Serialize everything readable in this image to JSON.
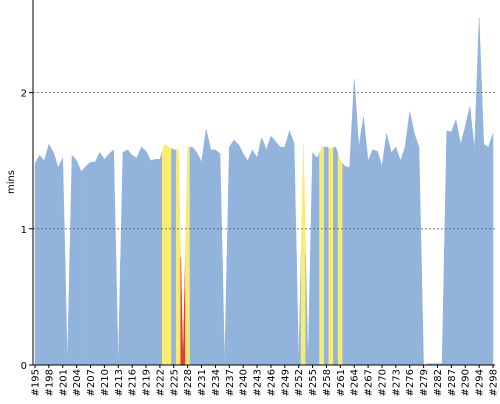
{
  "chart_data": {
    "type": "area",
    "ylabel": "mins",
    "categories": [
      "#195",
      null,
      null,
      "#198",
      null,
      null,
      "#201",
      null,
      null,
      "#204",
      null,
      null,
      "#207",
      null,
      null,
      "#210",
      null,
      null,
      "#213",
      null,
      null,
      "#216",
      null,
      null,
      "#219",
      null,
      null,
      "#222",
      null,
      null,
      "#225",
      null,
      null,
      "#228",
      null,
      null,
      "#231",
      null,
      null,
      "#234",
      null,
      null,
      "#237",
      null,
      null,
      "#240",
      null,
      null,
      "#243",
      null,
      null,
      "#246",
      null,
      null,
      "#249",
      null,
      null,
      "#252",
      null,
      null,
      "#255",
      null,
      null,
      "#258",
      null,
      null,
      "#261",
      null,
      null,
      "#264",
      null,
      null,
      "#267",
      null,
      null,
      "#270",
      null,
      null,
      "#273",
      null,
      null,
      "#276",
      null,
      null,
      "#279",
      null,
      null,
      "#282",
      null,
      null,
      "#287",
      null,
      null,
      "#290",
      null,
      null,
      "#294",
      null,
      null,
      "#298"
    ],
    "values": [
      1.48,
      1.54,
      1.5,
      1.62,
      1.56,
      1.45,
      1.52,
      0,
      1.54,
      1.5,
      1.42,
      1.46,
      1.49,
      1.49,
      1.56,
      1.51,
      1.55,
      1.58,
      0,
      1.56,
      1.58,
      1.54,
      1.52,
      1.6,
      1.57,
      1.5,
      1.51,
      1.51,
      1.62,
      1.6,
      1.58,
      1.58,
      0,
      1.6,
      1.6,
      1.56,
      1.49,
      1.73,
      1.58,
      1.58,
      1.55,
      0,
      1.6,
      1.65,
      1.62,
      1.55,
      1.5,
      1.58,
      1.52,
      1.67,
      1.58,
      1.68,
      1.64,
      1.6,
      1.6,
      1.72,
      1.63,
      0,
      1.62,
      0,
      1.56,
      1.52,
      1.6,
      1.6,
      1.59,
      1.6,
      1.5,
      1.46,
      1.45,
      2.1,
      1.6,
      1.82,
      1.5,
      1.58,
      1.57,
      1.46,
      1.7,
      1.56,
      1.6,
      1.5,
      1.6,
      1.86,
      1.7,
      1.6,
      0,
      0.01,
      0.01,
      0.01,
      0.01,
      1.72,
      1.71,
      1.8,
      1.62,
      1.75,
      1.9,
      1.58,
      2.55,
      1.62,
      1.6,
      1.7
    ],
    "color": "#92b4dc",
    "point_colors": [
      null,
      null,
      null,
      null,
      null,
      null,
      null,
      null,
      null,
      null,
      null,
      null,
      null,
      null,
      null,
      null,
      null,
      null,
      null,
      null,
      null,
      null,
      null,
      null,
      null,
      null,
      null,
      null,
      "#f7ec74",
      "#f7ec74",
      null,
      "#f7ec74",
      "#e53a2f",
      "#f7ec74",
      null,
      null,
      null,
      null,
      null,
      null,
      null,
      null,
      null,
      null,
      null,
      null,
      null,
      null,
      null,
      null,
      null,
      null,
      null,
      null,
      null,
      null,
      null,
      null,
      "#f7ec74",
      null,
      null,
      null,
      "#f7ec74",
      null,
      "#f7ec74",
      null,
      "#f7ec74",
      null,
      null,
      null,
      null,
      null,
      null,
      null,
      null,
      null,
      null,
      null,
      null,
      null,
      null,
      null,
      null,
      null,
      null,
      null,
      null,
      null,
      null,
      null,
      null,
      null,
      null,
      null,
      null,
      null,
      null,
      null,
      null,
      null
    ],
    "ylim": [
      0,
      2.68
    ],
    "yticks": [
      0,
      1,
      2
    ],
    "grid": true
  }
}
